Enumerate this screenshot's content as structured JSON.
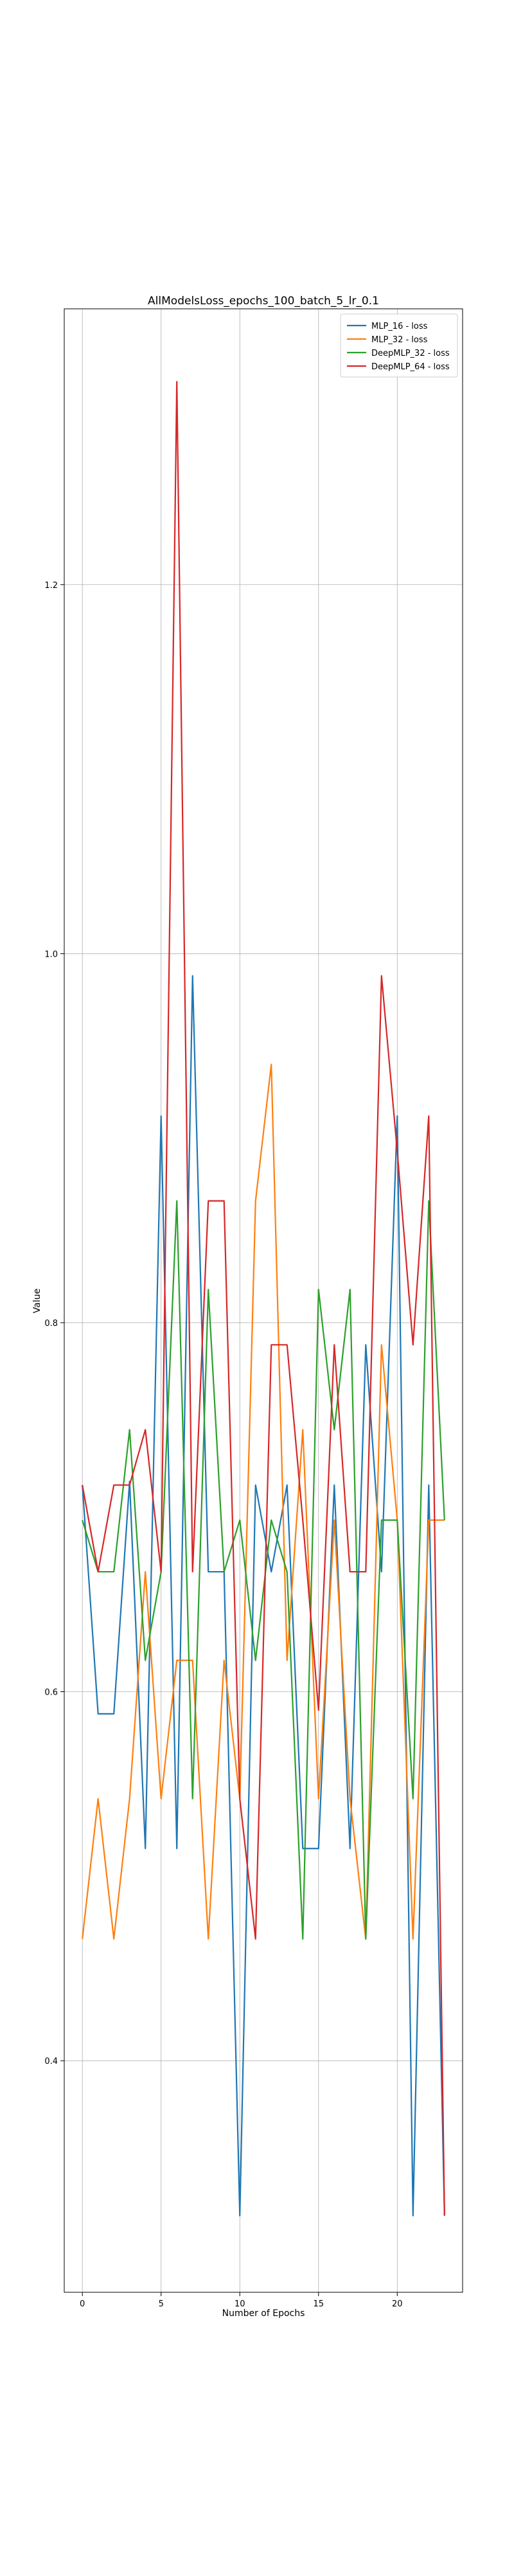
{
  "chart_data": {
    "type": "line",
    "title": "AllModelsLoss_epochs_100_batch_5_lr_0.1",
    "xlabel": "Number of Epochs",
    "ylabel": "Value",
    "xlim": [
      -1.15,
      24.15
    ],
    "ylim": [
      0.2745,
      1.3495
    ],
    "x_ticks": [
      0,
      5,
      10,
      15,
      20
    ],
    "y_ticks": [
      0.4,
      0.6,
      0.8,
      1.0,
      1.2
    ],
    "y_tick_labels": [
      "0.4",
      "0.6",
      "0.8",
      "1.0",
      "1.2"
    ],
    "grid": true,
    "legend_position": "top-right",
    "x": [
      0,
      1,
      2,
      3,
      4,
      5,
      6,
      7,
      8,
      9,
      10,
      11,
      12,
      13,
      14,
      15,
      16,
      17,
      18,
      19,
      20,
      21,
      22,
      23
    ],
    "series": [
      {
        "name": "MLP_16 - loss",
        "color": "#1f77b4",
        "values": [
          0.712,
          0.588,
          0.588,
          0.714,
          0.515,
          0.912,
          0.515,
          0.988,
          0.665,
          0.665,
          0.316,
          0.712,
          0.665,
          0.712,
          0.515,
          0.515,
          0.712,
          0.515,
          0.788,
          0.665,
          0.912,
          0.316,
          0.712,
          0.316
        ]
      },
      {
        "name": "MLP_32 - loss",
        "color": "#ff7f0e",
        "values": [
          0.466,
          0.542,
          0.466,
          0.542,
          0.665,
          0.542,
          0.617,
          0.617,
          0.466,
          0.617,
          0.542,
          0.866,
          0.94,
          0.617,
          0.742,
          0.542,
          0.693,
          0.542,
          0.466,
          0.788,
          0.693,
          0.466,
          0.693,
          0.693
        ]
      },
      {
        "name": "DeepMLP_32 - loss",
        "color": "#2ca02c",
        "values": [
          0.693,
          0.665,
          0.665,
          0.742,
          0.617,
          0.665,
          0.866,
          0.542,
          0.818,
          0.665,
          0.693,
          0.617,
          0.693,
          0.665,
          0.466,
          0.818,
          0.742,
          0.818,
          0.466,
          0.693,
          0.693,
          0.542,
          0.866,
          0.693
        ]
      },
      {
        "name": "DeepMLP_64 - loss",
        "color": "#d62728",
        "values": [
          0.712,
          0.665,
          0.712,
          0.712,
          0.742,
          0.665,
          1.31,
          0.665,
          0.866,
          0.866,
          0.542,
          0.466,
          0.788,
          0.788,
          0.693,
          0.59,
          0.788,
          0.665,
          0.665,
          0.988,
          0.893,
          0.788,
          0.912,
          0.316
        ]
      }
    ]
  }
}
